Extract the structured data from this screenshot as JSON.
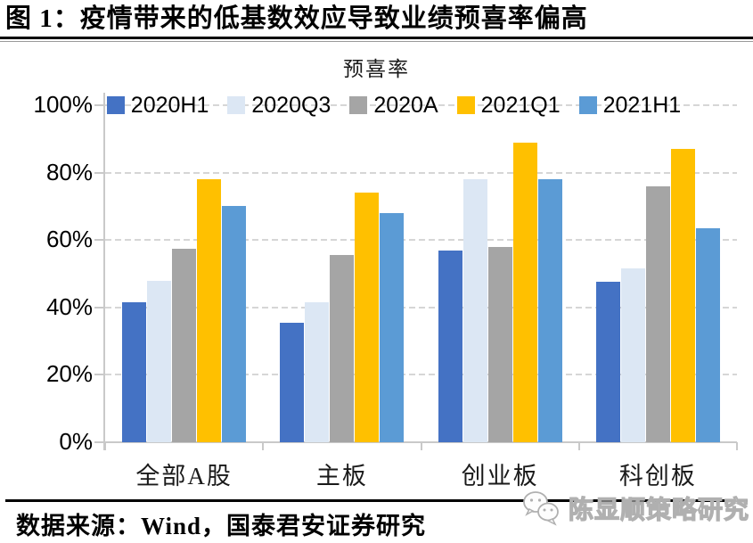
{
  "figure": {
    "title": "图 1：疫情带来的低基数效应导致业绩预喜率偏高"
  },
  "chart_data": {
    "type": "bar",
    "title": "预喜率",
    "categories": [
      "全部A股",
      "主板",
      "创业板",
      "科创板"
    ],
    "series": [
      {
        "name": "2020H1",
        "color": "#4472C4",
        "values": [
          41.5,
          35.5,
          57,
          47.5
        ]
      },
      {
        "name": "2020Q3",
        "color": "#DCE7F4",
        "values": [
          48,
          41.5,
          78,
          51.5
        ]
      },
      {
        "name": "2020A",
        "color": "#A5A5A5",
        "values": [
          57.5,
          55.5,
          58,
          76
        ]
      },
      {
        "name": "2021Q1",
        "color": "#FFC000",
        "values": [
          78,
          74,
          89,
          87
        ]
      },
      {
        "name": "2021H1",
        "color": "#5B9BD5",
        "values": [
          70,
          68,
          78,
          63.5
        ]
      }
    ],
    "ylim": [
      0,
      100
    ],
    "ytick_interval": 20,
    "yticks": [
      "0%",
      "20%",
      "40%",
      "60%",
      "80%",
      "100%"
    ],
    "grid": "horizontal-dashed",
    "legend_position": "top",
    "axis_color": "#c9c9c9",
    "gridline_color": "#d6d6d6"
  },
  "footer": {
    "source": "数据来源：Wind，国泰君安证券研究"
  },
  "watermark": {
    "text": "陈显顺策略研究",
    "icon": "wechat-icon"
  }
}
